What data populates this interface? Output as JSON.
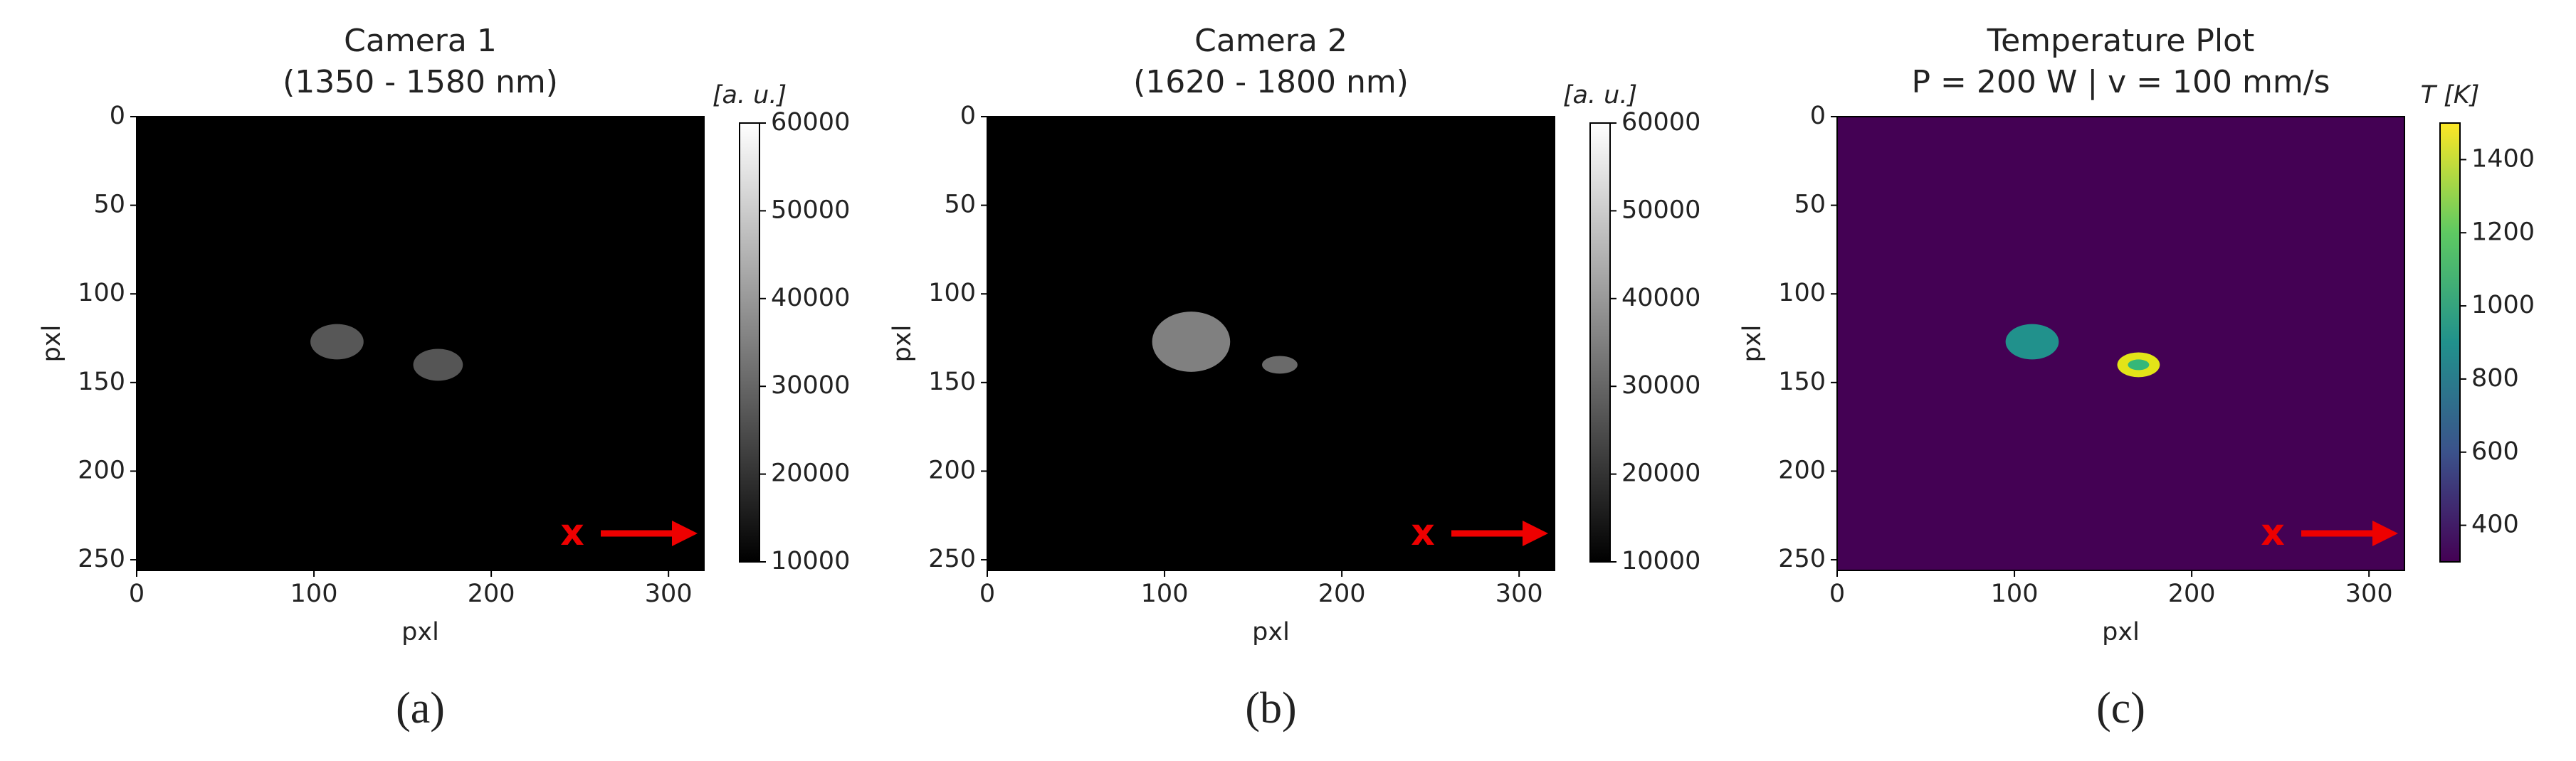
{
  "chart_data": [
    {
      "type": "image",
      "title": "Camera 1",
      "subtitle": "(1350 - 1580 nm)",
      "xlabel": "pxl",
      "ylabel": "pxl",
      "xlim": [
        0,
        320
      ],
      "xticks": [
        0,
        100,
        200,
        300
      ],
      "ylim": [
        256,
        0
      ],
      "yticks": [
        0,
        50,
        100,
        150,
        200,
        250
      ],
      "colormap": "gray",
      "colorbar_label": "[a. u.]",
      "clim": [
        10000,
        60000
      ],
      "cticks": [
        10000,
        20000,
        30000,
        40000,
        50000,
        60000
      ],
      "annotation": "x",
      "caption": "(a)"
    },
    {
      "type": "image",
      "title": "Camera 2",
      "subtitle": "(1620 - 1800 nm)",
      "xlabel": "pxl",
      "ylabel": "pxl",
      "xlim": [
        0,
        320
      ],
      "xticks": [
        0,
        100,
        200,
        300
      ],
      "ylim": [
        256,
        0
      ],
      "yticks": [
        0,
        50,
        100,
        150,
        200,
        250
      ],
      "colormap": "gray",
      "colorbar_label": "[a. u.]",
      "clim": [
        10000,
        60000
      ],
      "cticks": [
        10000,
        20000,
        30000,
        40000,
        50000,
        60000
      ],
      "annotation": "x",
      "caption": "(b)"
    },
    {
      "type": "image",
      "title": "Temperature Plot",
      "subtitle": "P = 200 W | v = 100 mm/s",
      "xlabel": "pxl",
      "ylabel": "pxl",
      "xlim": [
        0,
        320
      ],
      "xticks": [
        0,
        100,
        200,
        300
      ],
      "ylim": [
        256,
        0
      ],
      "yticks": [
        0,
        50,
        100,
        150,
        200,
        250
      ],
      "colormap": "viridis",
      "colorbar_label": "T [K]",
      "clim": [
        300,
        1500
      ],
      "cticks": [
        400,
        600,
        800,
        1000,
        1200,
        1400
      ],
      "annotation": "x",
      "caption": "(c)"
    }
  ]
}
